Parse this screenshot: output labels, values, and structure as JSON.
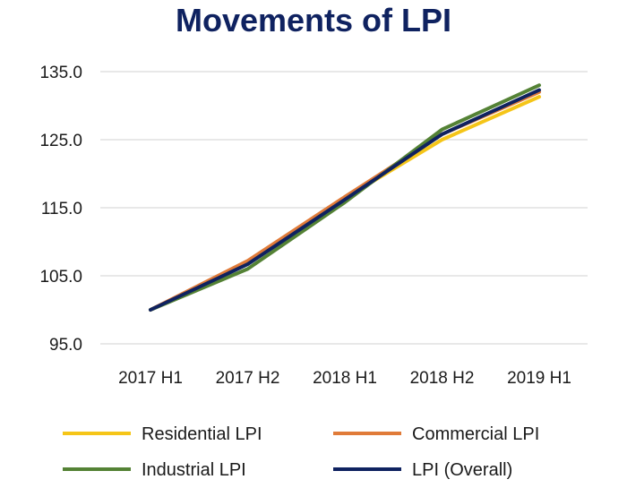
{
  "chart_data": {
    "type": "line",
    "title": "Movements of LPI",
    "xlabel": "",
    "ylabel": "",
    "categories": [
      "2017 H1",
      "2017 H2",
      "2018 H1",
      "2018 H2",
      "2019 H1"
    ],
    "ylim": [
      95.0,
      135.0
    ],
    "yticks": [
      "95.0",
      "105.0",
      "115.0",
      "125.0",
      "135.0"
    ],
    "grid": true,
    "legend_position": "bottom",
    "series": [
      {
        "name": "Residential LPI",
        "color": "#f5c518",
        "values": [
          100.0,
          106.8,
          116.4,
          125.0,
          131.3
        ]
      },
      {
        "name": "Commercial LPI",
        "color": "#e07b39",
        "values": [
          100.0,
          107.2,
          116.6,
          125.8,
          132.0
        ]
      },
      {
        "name": "Industrial LPI",
        "color": "#548235",
        "values": [
          100.0,
          106.0,
          115.8,
          126.5,
          133.0
        ]
      },
      {
        "name": "LPI (Overall)",
        "color": "#0f2260",
        "values": [
          100.0,
          106.7,
          116.2,
          125.8,
          132.3
        ]
      }
    ]
  }
}
